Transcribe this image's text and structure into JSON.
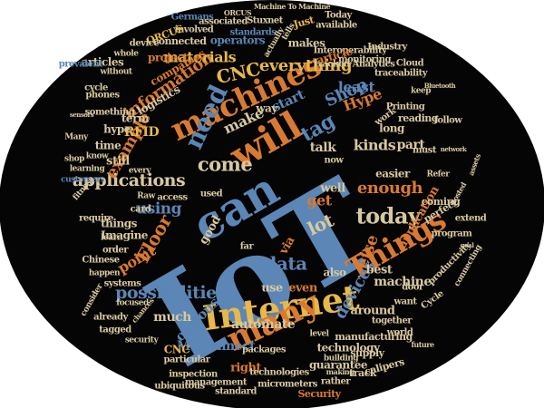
{
  "colors": {
    "background": "#ffffff",
    "disc": "#050505",
    "blue": "#5b86b5",
    "light_blue": "#7fa7cf",
    "orange": "#d97a33",
    "gold": "#e8b84a",
    "beige": "#d8c8a0",
    "grey": "#9aa3ad"
  },
  "words": [
    {
      "text": "IoT",
      "color": "blue"
    },
    {
      "text": "can",
      "color": "blue"
    },
    {
      "text": "Internet",
      "color": "gold"
    },
    {
      "text": "will",
      "color": "orange"
    },
    {
      "text": "machines",
      "color": "orange"
    },
    {
      "text": "Things",
      "color": "orange"
    },
    {
      "text": "many",
      "color": "orange"
    },
    {
      "text": "today",
      "color": "beige"
    },
    {
      "text": "need",
      "color": "blue"
    },
    {
      "text": "come",
      "color": "beige"
    },
    {
      "text": "applications",
      "color": "beige"
    },
    {
      "text": "CNC",
      "color": "gold"
    },
    {
      "text": "everything",
      "color": "gold"
    },
    {
      "text": "information",
      "color": "orange"
    },
    {
      "text": "Shop",
      "color": "blue"
    },
    {
      "text": "tag",
      "color": "blue"
    },
    {
      "text": "enough",
      "color": "orange"
    },
    {
      "text": "data",
      "color": "blue"
    },
    {
      "text": "possibilities",
      "color": "blue"
    },
    {
      "text": "devices",
      "color": "blue"
    },
    {
      "text": "point",
      "color": "orange"
    },
    {
      "text": "lot",
      "color": "beige"
    },
    {
      "text": "get",
      "color": "orange"
    },
    {
      "text": "using",
      "color": "blue"
    },
    {
      "text": "Floor",
      "color": "orange"
    },
    {
      "text": "example",
      "color": "orange"
    },
    {
      "text": "RFID",
      "color": "gold"
    },
    {
      "text": "make",
      "color": "beige"
    },
    {
      "text": "materials",
      "color": "gold"
    },
    {
      "text": "start",
      "color": "blue"
    },
    {
      "text": "least",
      "color": "blue"
    },
    {
      "text": "Hype",
      "color": "orange"
    },
    {
      "text": "kinds",
      "color": "beige"
    },
    {
      "text": "talk",
      "color": "beige"
    },
    {
      "text": "part",
      "color": "beige"
    },
    {
      "text": "else",
      "color": "orange"
    },
    {
      "text": "machine",
      "color": "beige"
    },
    {
      "text": "best",
      "color": "beige"
    },
    {
      "text": "around",
      "color": "beige"
    },
    {
      "text": "automate",
      "color": "beige"
    },
    {
      "text": "much",
      "color": "beige"
    },
    {
      "text": "obvious",
      "color": "blue"
    },
    {
      "text": "MTConnect",
      "color": "blue"
    },
    {
      "text": "CNC",
      "color": "gold"
    },
    {
      "text": "technology",
      "color": "beige"
    },
    {
      "text": "guarantee",
      "color": "beige"
    },
    {
      "text": "right",
      "color": "orange"
    },
    {
      "text": "use",
      "color": "beige"
    },
    {
      "text": "even",
      "color": "orange"
    },
    {
      "text": "also",
      "color": "beige"
    },
    {
      "text": "via",
      "color": "orange"
    },
    {
      "text": "well",
      "color": "beige"
    },
    {
      "text": "easier",
      "color": "beige"
    },
    {
      "text": "application",
      "color": "orange"
    },
    {
      "text": "still",
      "color": "beige"
    },
    {
      "text": "time",
      "color": "beige"
    },
    {
      "text": "term",
      "color": "beige"
    },
    {
      "text": "hype",
      "color": "beige"
    },
    {
      "text": "articles",
      "color": "beige"
    },
    {
      "text": "companies",
      "color": "orange"
    },
    {
      "text": "logistics",
      "color": "beige"
    },
    {
      "text": "project",
      "color": "orange"
    },
    {
      "text": "way",
      "color": "beige"
    },
    {
      "text": "makes",
      "color": "beige"
    },
    {
      "text": "operators",
      "color": "blue"
    },
    {
      "text": "connected",
      "color": "beige"
    },
    {
      "text": "standards",
      "color": "blue"
    },
    {
      "text": "involved",
      "color": "beige"
    },
    {
      "text": "ORCUS",
      "color": "gold"
    },
    {
      "text": "Germans",
      "color": "blue"
    },
    {
      "text": "associated",
      "color": "beige"
    },
    {
      "text": "Stuxnet",
      "color": "beige"
    },
    {
      "text": "Just",
      "color": "gold"
    },
    {
      "text": "Interoperability",
      "color": "beige"
    },
    {
      "text": "tracked",
      "color": "beige"
    },
    {
      "text": "Analytics",
      "color": "beige"
    },
    {
      "text": "article",
      "color": "orange"
    },
    {
      "text": "monitoring",
      "color": "beige"
    },
    {
      "text": "Industry",
      "color": "beige"
    },
    {
      "text": "Cloud",
      "color": "beige"
    },
    {
      "text": "traceability",
      "color": "beige"
    },
    {
      "text": "reading",
      "color": "beige"
    },
    {
      "text": "follow",
      "color": "beige"
    },
    {
      "text": "long",
      "color": "beige"
    },
    {
      "text": "must",
      "color": "beige"
    },
    {
      "text": "Printing",
      "color": "beige"
    },
    {
      "text": "work",
      "color": "beige"
    },
    {
      "text": "Today",
      "color": "beige"
    },
    {
      "text": "available",
      "color": "beige"
    },
    {
      "text": "device",
      "color": "beige"
    },
    {
      "text": "cycle",
      "color": "beige"
    },
    {
      "text": "prevalent",
      "color": "blue"
    },
    {
      "text": "phones",
      "color": "beige"
    },
    {
      "text": "something",
      "color": "beige"
    },
    {
      "text": "Many",
      "color": "beige"
    },
    {
      "text": "learning",
      "color": "beige"
    },
    {
      "text": "customers",
      "color": "blue"
    },
    {
      "text": "things",
      "color": "beige"
    },
    {
      "text": "Imagine",
      "color": "beige"
    },
    {
      "text": "card",
      "color": "beige"
    },
    {
      "text": "access",
      "color": "beige"
    },
    {
      "text": "require",
      "color": "beige"
    },
    {
      "text": "order",
      "color": "beige"
    },
    {
      "text": "learn",
      "color": "beige"
    },
    {
      "text": "Chinese",
      "color": "beige"
    },
    {
      "text": "happen",
      "color": "beige"
    },
    {
      "text": "systems",
      "color": "beige"
    },
    {
      "text": "already",
      "color": "beige"
    },
    {
      "text": "focused",
      "color": "beige"
    },
    {
      "text": "tagged",
      "color": "beige"
    },
    {
      "text": "security",
      "color": "beige"
    },
    {
      "text": "inspection",
      "color": "beige"
    },
    {
      "text": "ubiquitous",
      "color": "beige"
    },
    {
      "text": "management",
      "color": "beige"
    },
    {
      "text": "standard",
      "color": "beige"
    },
    {
      "text": "particular",
      "color": "beige"
    },
    {
      "text": "packages",
      "color": "beige"
    },
    {
      "text": "technologies",
      "color": "beige"
    },
    {
      "text": "Security",
      "color": "orange"
    },
    {
      "text": "micrometers",
      "color": "beige"
    },
    {
      "text": "rather",
      "color": "beige"
    },
    {
      "text": "calipers",
      "color": "beige"
    },
    {
      "text": "track",
      "color": "beige"
    },
    {
      "text": "supply",
      "color": "beige"
    },
    {
      "text": "manufacturing",
      "color": "beige"
    },
    {
      "text": "together",
      "color": "beige"
    },
    {
      "text": "world",
      "color": "beige"
    },
    {
      "text": "level",
      "color": "beige"
    },
    {
      "text": "door",
      "color": "beige"
    },
    {
      "text": "want",
      "color": "beige"
    },
    {
      "text": "Cycle",
      "color": "beige"
    },
    {
      "text": "productivity",
      "color": "beige"
    },
    {
      "text": "connecting",
      "color": "beige"
    },
    {
      "text": "program",
      "color": "beige"
    },
    {
      "text": "extend",
      "color": "beige"
    },
    {
      "text": "coming",
      "color": "beige"
    },
    {
      "text": "perfect",
      "color": "beige"
    },
    {
      "text": "far",
      "color": "beige"
    },
    {
      "text": "good",
      "color": "beige"
    },
    {
      "text": "now",
      "color": "beige"
    },
    {
      "text": "Refer",
      "color": "beige"
    },
    {
      "text": "Raw",
      "color": "beige"
    },
    {
      "text": "used",
      "color": "beige"
    },
    {
      "text": "every",
      "color": "beige"
    },
    {
      "text": "shop",
      "color": "beige"
    },
    {
      "text": "know",
      "color": "beige"
    },
    {
      "text": "keep",
      "color": "beige"
    },
    {
      "text": "fitness",
      "color": "beige"
    },
    {
      "text": "consider",
      "color": "beige"
    },
    {
      "text": "assets",
      "color": "beige"
    },
    {
      "text": "hosted",
      "color": "beige"
    },
    {
      "text": "chances",
      "color": "beige"
    },
    {
      "text": "building",
      "color": "beige"
    },
    {
      "text": "making",
      "color": "beige"
    },
    {
      "text": "without",
      "color": "beige"
    },
    {
      "text": "whole",
      "color": "beige"
    },
    {
      "text": "tells",
      "color": "beige"
    },
    {
      "text": "actually",
      "color": "beige"
    },
    {
      "text": "Machine To Machine",
      "color": "beige"
    },
    {
      "text": "ORCUS",
      "color": "beige"
    },
    {
      "text": "Bluetooth",
      "color": "beige"
    },
    {
      "text": "network",
      "color": "beige"
    },
    {
      "text": "sensors",
      "color": "beige"
    },
    {
      "text": "goal",
      "color": "beige"
    },
    {
      "text": "future",
      "color": "beige"
    }
  ]
}
